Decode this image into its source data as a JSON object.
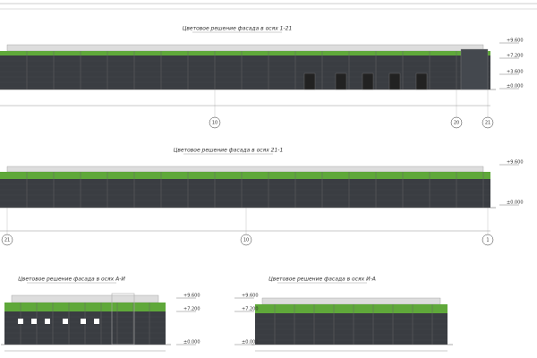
{
  "drawings": [
    {
      "title": "Цветовое решение фасада в осях 1-21",
      "axes": [
        "10",
        "20",
        "21"
      ],
      "levels": [
        "+9.600",
        "+7.200",
        "+3.600",
        "±0.000"
      ]
    },
    {
      "title": "Цветовое решение фасада в осях 21-1",
      "axes": [
        "21",
        "10",
        "1"
      ],
      "levels": [
        "+9.600",
        "±0.000"
      ]
    },
    {
      "title": "Цветовое решение фасада в осях А-И",
      "axes": [],
      "levels": [
        "+9.600",
        "+7.200",
        "±0.000"
      ]
    },
    {
      "title": "Цветовое решение фасада в осях И-А",
      "axes": [],
      "levels": [
        "+9.600",
        "+7.200",
        "±0.000"
      ]
    }
  ]
}
